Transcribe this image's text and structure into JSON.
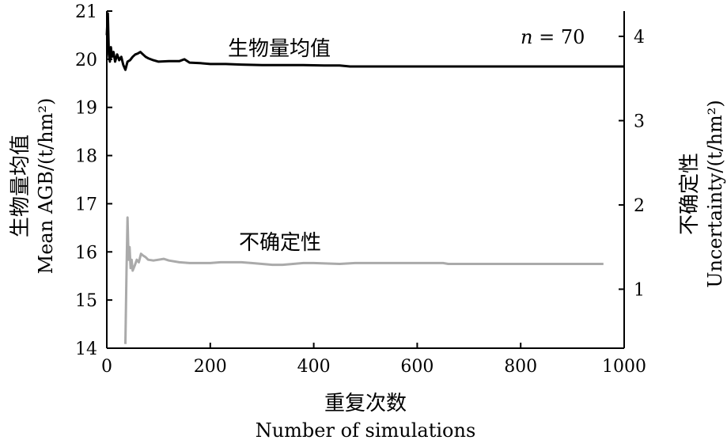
{
  "chart_data": {
    "type": "line",
    "x_label_cn": "重复次数",
    "x_label_en": "Number of simulations",
    "y_left_label_cn": "生物量均值",
    "y_left_label_en": "Mean AGB/(t/hm²)",
    "y_right_label_cn": "不确定性",
    "y_right_label_en": "Uncertainty/(t/hm²)",
    "annotation": {
      "italic": "n",
      "rest": " = 70"
    },
    "xlim": [
      0,
      1000
    ],
    "ylim_left": [
      14,
      21
    ],
    "ylim_right": [
      0.3,
      4.3
    ],
    "x_ticks": [
      0,
      200,
      400,
      600,
      800,
      1000
    ],
    "y_left_ticks": [
      14,
      15,
      16,
      17,
      18,
      19,
      20,
      21
    ],
    "y_right_ticks": [
      1,
      2,
      3,
      4
    ],
    "series": [
      {
        "name": "生物量均值",
        "axis": "left",
        "color": "#000000",
        "points": [
          [
            0,
            20.5
          ],
          [
            2,
            20.95
          ],
          [
            4,
            20.1
          ],
          [
            6,
            19.95
          ],
          [
            8,
            20.25
          ],
          [
            10,
            20.05
          ],
          [
            13,
            20.15
          ],
          [
            16,
            19.95
          ],
          [
            20,
            20.1
          ],
          [
            24,
            19.98
          ],
          [
            28,
            20.05
          ],
          [
            32,
            19.88
          ],
          [
            36,
            19.78
          ],
          [
            40,
            19.95
          ],
          [
            45,
            19.98
          ],
          [
            50,
            20.05
          ],
          [
            55,
            20.1
          ],
          [
            60,
            20.12
          ],
          [
            65,
            20.15
          ],
          [
            70,
            20.1
          ],
          [
            75,
            20.05
          ],
          [
            80,
            20.02
          ],
          [
            90,
            19.98
          ],
          [
            100,
            19.95
          ],
          [
            120,
            19.96
          ],
          [
            140,
            19.96
          ],
          [
            150,
            20.0
          ],
          [
            160,
            19.93
          ],
          [
            180,
            19.92
          ],
          [
            200,
            19.9
          ],
          [
            230,
            19.9
          ],
          [
            260,
            19.89
          ],
          [
            300,
            19.88
          ],
          [
            340,
            19.88
          ],
          [
            380,
            19.88
          ],
          [
            420,
            19.87
          ],
          [
            450,
            19.87
          ],
          [
            470,
            19.85
          ],
          [
            500,
            19.85
          ],
          [
            600,
            19.85
          ],
          [
            700,
            19.85
          ],
          [
            800,
            19.85
          ],
          [
            900,
            19.85
          ],
          [
            1000,
            19.85
          ]
        ]
      },
      {
        "name": "不确定性",
        "axis": "right",
        "color": "#aaaaaa",
        "points": [
          [
            36,
            0.35
          ],
          [
            38,
            1.2
          ],
          [
            40,
            1.85
          ],
          [
            42,
            1.35
          ],
          [
            44,
            1.5
          ],
          [
            46,
            1.25
          ],
          [
            48,
            1.35
          ],
          [
            50,
            1.22
          ],
          [
            54,
            1.28
          ],
          [
            58,
            1.35
          ],
          [
            62,
            1.32
          ],
          [
            66,
            1.42
          ],
          [
            70,
            1.4
          ],
          [
            75,
            1.38
          ],
          [
            80,
            1.35
          ],
          [
            90,
            1.34
          ],
          [
            100,
            1.35
          ],
          [
            110,
            1.36
          ],
          [
            120,
            1.34
          ],
          [
            140,
            1.32
          ],
          [
            160,
            1.31
          ],
          [
            180,
            1.31
          ],
          [
            200,
            1.31
          ],
          [
            220,
            1.32
          ],
          [
            260,
            1.32
          ],
          [
            280,
            1.31
          ],
          [
            300,
            1.3
          ],
          [
            320,
            1.29
          ],
          [
            340,
            1.29
          ],
          [
            360,
            1.3
          ],
          [
            380,
            1.31
          ],
          [
            400,
            1.31
          ],
          [
            450,
            1.3
          ],
          [
            480,
            1.31
          ],
          [
            500,
            1.31
          ],
          [
            550,
            1.31
          ],
          [
            600,
            1.31
          ],
          [
            650,
            1.31
          ],
          [
            660,
            1.3
          ],
          [
            700,
            1.3
          ],
          [
            800,
            1.3
          ],
          [
            900,
            1.3
          ],
          [
            960,
            1.3
          ]
        ]
      }
    ]
  }
}
